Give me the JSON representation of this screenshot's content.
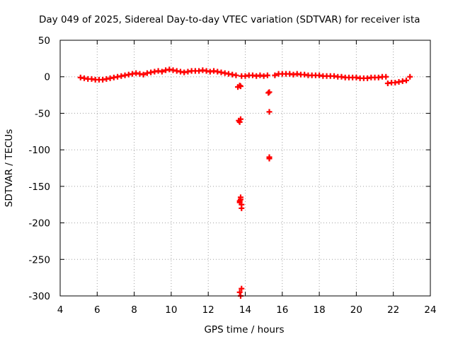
{
  "chart_data": {
    "type": "scatter",
    "title": "Day 049 of 2025, Sidereal Day-to-day VTEC variation (SDTVAR) for receiver ista",
    "xlabel": "GPS time / hours",
    "ylabel": "SDTVAR / TECUs",
    "xlim": [
      4,
      24
    ],
    "ylim": [
      -300,
      50
    ],
    "xticks": [
      4,
      6,
      8,
      10,
      12,
      14,
      16,
      18,
      20,
      22,
      24
    ],
    "yticks": [
      -300,
      -250,
      -200,
      -150,
      -100,
      -50,
      0,
      50
    ],
    "grid": true,
    "marker": "+",
    "color": "#ff0000",
    "series": [
      {
        "name": "SDTVAR",
        "x": [
          5.1,
          5.3,
          5.5,
          5.7,
          5.9,
          6.1,
          6.3,
          6.5,
          6.7,
          6.9,
          7.1,
          7.3,
          7.5,
          7.7,
          7.9,
          8.1,
          8.3,
          8.5,
          8.7,
          8.9,
          9.1,
          9.3,
          9.5,
          9.7,
          9.9,
          10.1,
          10.3,
          10.5,
          10.7,
          10.9,
          11.1,
          11.3,
          11.5,
          11.7,
          11.9,
          12.1,
          12.3,
          12.5,
          12.7,
          12.9,
          13.1,
          13.3,
          13.5,
          13.6,
          13.7,
          13.75,
          13.7,
          13.65,
          13.75,
          13.8,
          13.7,
          13.75,
          13.8,
          13.7,
          13.75,
          13.8,
          13.7,
          13.75,
          13.8,
          14.0,
          14.2,
          14.4,
          14.6,
          14.8,
          15.0,
          15.2,
          15.3,
          15.3,
          15.3,
          15.3,
          15.25,
          15.6,
          15.8,
          16.0,
          16.2,
          16.4,
          16.6,
          16.8,
          17.0,
          17.2,
          17.4,
          17.6,
          17.8,
          18.0,
          18.2,
          18.4,
          18.6,
          18.8,
          19.0,
          19.2,
          19.4,
          19.6,
          19.8,
          20.0,
          20.2,
          20.4,
          20.6,
          20.8,
          21.0,
          21.2,
          21.4,
          21.6,
          21.7,
          21.9,
          22.1,
          22.3,
          22.5,
          22.7,
          22.9
        ],
        "y": [
          -1,
          -2,
          -3,
          -3,
          -4,
          -4,
          -4,
          -3,
          -2,
          -1,
          0,
          1,
          2,
          3,
          4,
          5,
          4,
          3,
          5,
          6,
          7,
          8,
          7,
          9,
          10,
          9,
          8,
          7,
          6,
          7,
          8,
          8,
          8,
          9,
          8,
          7,
          8,
          7,
          6,
          5,
          4,
          3,
          2,
          -14,
          -12,
          -13,
          -62,
          -60,
          -58,
          -175,
          -170,
          -165,
          -290,
          -295,
          -300,
          -180,
          -172,
          -168,
          1,
          1,
          2,
          2,
          1,
          2,
          1,
          2,
          -21,
          -48,
          -112,
          -110,
          -22,
          2,
          4,
          4,
          4,
          4,
          3,
          4,
          3,
          3,
          2,
          2,
          2,
          2,
          1,
          1,
          1,
          1,
          0,
          0,
          -1,
          -1,
          -1,
          -1,
          -2,
          -2,
          -2,
          -1,
          -1,
          -1,
          0,
          0,
          -9,
          -8,
          -8,
          -7,
          -6,
          -5,
          0
        ]
      }
    ]
  }
}
